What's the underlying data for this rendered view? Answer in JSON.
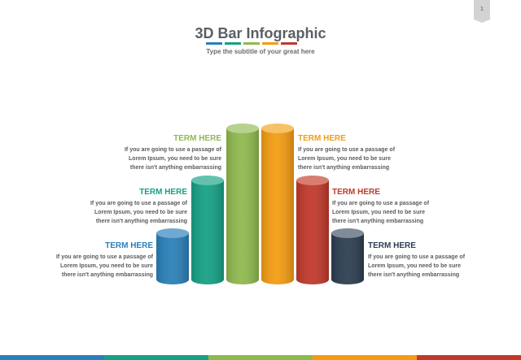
{
  "page_number": "1",
  "title": "3D Bar Infographic",
  "subtitle": "Type the subtitle of your great here",
  "colors": {
    "blue": "#2a7fb8",
    "teal": "#16a085",
    "green": "#8fb94f",
    "orange": "#f39c12",
    "red": "#c0392b",
    "navy": "#2c3e50"
  },
  "items": [
    {
      "term": "TERM HERE",
      "description": [
        "If you are going to use a passage of",
        "Lorem Ipsum, you need to be sure",
        "there isn't anything embarrassing"
      ]
    },
    {
      "term": "TERM HERE",
      "description": [
        "If you are going to use a passage of",
        "Lorem Ipsum, you need to be sure",
        "there isn't anything embarrassing"
      ]
    },
    {
      "term": "TERM HERE",
      "description": [
        "If you are going to use a passage of",
        "Lorem Ipsum, you need to be sure",
        "there isn't anything embarrassing"
      ]
    },
    {
      "term": "TERM HERE",
      "description": [
        "If you are going to use a passage of",
        "Lorem Ipsum, you need to be sure",
        "there isn't anything embarrassing"
      ]
    },
    {
      "term": "TERM HERE",
      "description": [
        "If you are going to use a passage of",
        "Lorem Ipsum, you need to be sure",
        "there isn't anything embarrassing"
      ]
    },
    {
      "term": "TERM HERE",
      "description": [
        "If you are going to use a passage of",
        "Lorem Ipsum, you need to be sure",
        "there isn't anything embarrassing"
      ]
    }
  ]
}
